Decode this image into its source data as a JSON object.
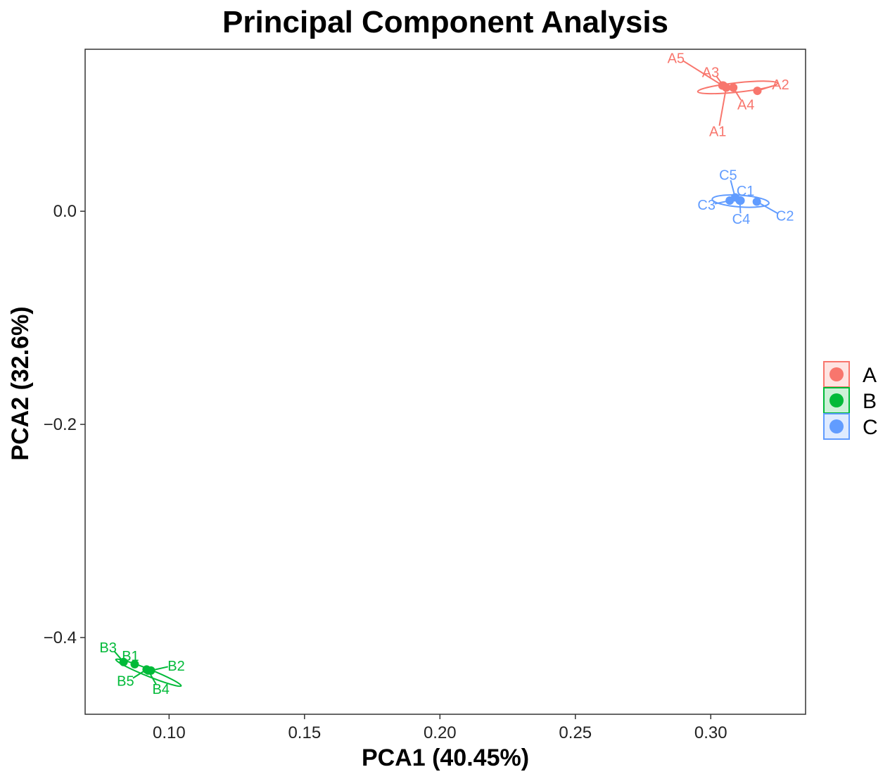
{
  "chart_data": {
    "type": "scatter",
    "title": "Principal Component Analysis",
    "xlabel": "PCA1 (40.45%)",
    "ylabel": "PCA2 (32.6%)",
    "xlim": [
      0.069,
      0.335
    ],
    "ylim": [
      -0.472,
      0.152
    ],
    "xticks": [
      0.1,
      0.15,
      0.2,
      0.25,
      0.3
    ],
    "xtick_labels": [
      "0.10",
      "0.15",
      "0.20",
      "0.25",
      "0.30"
    ],
    "yticks": [
      0.0,
      -0.2,
      -0.4
    ],
    "ytick_labels": [
      "0.0",
      "−0.2",
      "−0.4"
    ],
    "grid": false,
    "legend_position": "right",
    "series": [
      {
        "name": "A",
        "color": "#F8766D",
        "points": [
          {
            "label": "A1",
            "x": 0.3057,
            "y": 0.116
          },
          {
            "label": "A2",
            "x": 0.3172,
            "y": 0.113
          },
          {
            "label": "A3",
            "x": 0.3046,
            "y": 0.118
          },
          {
            "label": "A4",
            "x": 0.3083,
            "y": 0.116
          },
          {
            "label": "A5",
            "x": 0.3043,
            "y": 0.118
          }
        ],
        "ellipse": {
          "cx": 0.3099,
          "cy": 0.1162,
          "rx": 0.0148,
          "ry": 0.0044,
          "angle_deg": -6
        }
      },
      {
        "name": "B",
        "color": "#00BA38",
        "points": [
          {
            "label": "B1",
            "x": 0.0873,
            "y": -0.425
          },
          {
            "label": "B2",
            "x": 0.0933,
            "y": -0.431
          },
          {
            "label": "B3",
            "x": 0.0832,
            "y": -0.423
          },
          {
            "label": "B4",
            "x": 0.0923,
            "y": -0.431
          },
          {
            "label": "B5",
            "x": 0.0917,
            "y": -0.43
          }
        ],
        "ellipse": {
          "cx": 0.0924,
          "cy": -0.433,
          "rx": 0.013,
          "ry": 0.0033,
          "angle_deg": 22
        }
      },
      {
        "name": "C",
        "color": "#619CFF",
        "points": [
          {
            "label": "C1",
            "x": 0.311,
            "y": 0.01
          },
          {
            "label": "C2",
            "x": 0.317,
            "y": 0.009
          },
          {
            "label": "C3",
            "x": 0.307,
            "y": 0.01
          },
          {
            "label": "C4",
            "x": 0.3107,
            "y": 0.01
          },
          {
            "label": "C5",
            "x": 0.309,
            "y": 0.013
          }
        ],
        "ellipse": {
          "cx": 0.311,
          "cy": 0.0095,
          "rx": 0.0105,
          "ry": 0.0055,
          "angle_deg": 4
        }
      }
    ]
  }
}
